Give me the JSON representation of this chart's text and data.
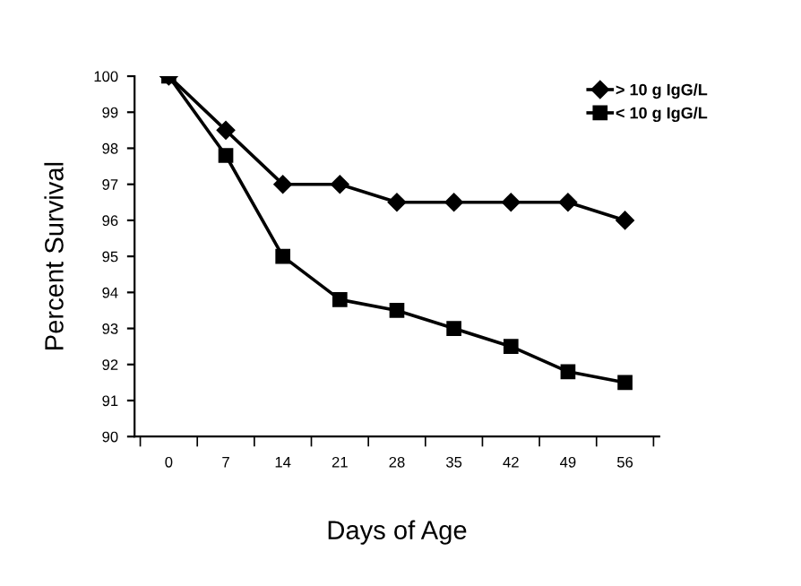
{
  "chart_data": {
    "type": "line",
    "xlabel": "Days of Age",
    "ylabel": "Percent Survival",
    "categories": [
      "0",
      "7",
      "14",
      "21",
      "28",
      "35",
      "42",
      "49",
      "56"
    ],
    "series": [
      {
        "name": "> 10 g IgG/L",
        "color": "#000000",
        "marker": "diamond",
        "values": [
          100,
          98.5,
          97,
          97,
          96.5,
          96.5,
          96.5,
          96.5,
          96
        ]
      },
      {
        "name": "< 10 g IgG/L",
        "color": "#000000",
        "marker": "square",
        "values": [
          100,
          97.8,
          95,
          93.8,
          93.5,
          93,
          92.5,
          91.8,
          91.5
        ]
      }
    ],
    "ylim": [
      90,
      100
    ],
    "yticks": [
      90,
      91,
      92,
      93,
      94,
      95,
      96,
      97,
      98,
      99,
      100
    ],
    "grid": false,
    "legend": "top right",
    "line_style": "solid"
  }
}
